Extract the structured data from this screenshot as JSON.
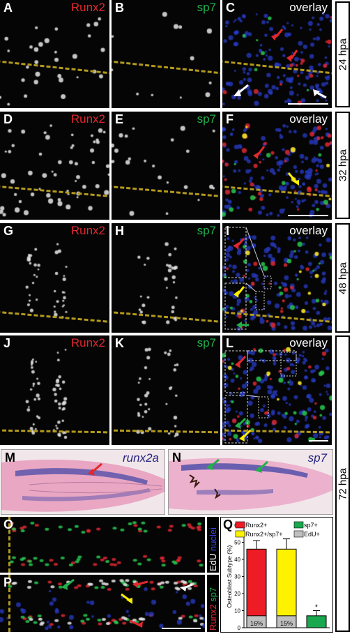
{
  "panels": {
    "A": {
      "letter": "A",
      "channel": "Runx2"
    },
    "B": {
      "letter": "B",
      "channel": "sp7"
    },
    "C": {
      "letter": "C",
      "channel": "overlay"
    },
    "D": {
      "letter": "D",
      "channel": "Runx2"
    },
    "E": {
      "letter": "E",
      "channel": "sp7"
    },
    "F": {
      "letter": "F",
      "channel": "overlay"
    },
    "G": {
      "letter": "G",
      "channel": "Runx2"
    },
    "H": {
      "letter": "H",
      "channel": "sp7"
    },
    "I": {
      "letter": "I",
      "channel": "overlay"
    },
    "J": {
      "letter": "J",
      "channel": "Runx2"
    },
    "K": {
      "letter": "K",
      "channel": "sp7"
    },
    "L": {
      "letter": "L",
      "channel": "overlay"
    },
    "M": {
      "letter": "M",
      "gene": "runx2a"
    },
    "N": {
      "letter": "N",
      "gene": "sp7"
    },
    "O": {
      "letter": "O"
    },
    "P": {
      "letter": "P"
    },
    "Q": {
      "letter": "Q"
    }
  },
  "timepoints": [
    "24 hpa",
    "32 hpa",
    "48 hpa",
    "72 hpa"
  ],
  "vertical_legends": {
    "edu_nuclei": [
      {
        "text": "EdU",
        "color": "#ffffff"
      },
      {
        "text": " nuclei",
        "color": "#3a48e8"
      }
    ],
    "runx2_sp7": [
      {
        "text": "Runx2",
        "color": "#e0282e"
      },
      {
        "text": " sp7",
        "color": "#22b04a"
      }
    ]
  },
  "colors": {
    "runx2": "#e0282e",
    "sp7": "#22b04a",
    "overlay": "#ffffff",
    "dash": "#b39a1d",
    "double": "#ffee00",
    "edu": "#c0c0c0",
    "ish_stain": "#4a4aa8"
  },
  "chart_data": {
    "type": "bar",
    "categories": [
      "Runx2+",
      "Runx2+/sp7+",
      "sp7+"
    ],
    "ylabel": "Osteoblast Subtype (%)",
    "ylim": [
      0,
      60
    ],
    "yticks": [
      0,
      10,
      20,
      30,
      40,
      50,
      60
    ],
    "values": [
      46,
      46,
      7
    ],
    "errors": [
      5,
      6,
      3
    ],
    "colors": [
      "#ee1c24",
      "#fff200",
      "#1aa84f"
    ],
    "edu_fraction_labels": [
      "16%",
      "15%",
      ""
    ],
    "edu_values": [
      7,
      7,
      0
    ],
    "significance": "*",
    "legend": [
      {
        "sup": "Runx2",
        "text": "+",
        "color": "#ee1c24"
      },
      {
        "sup": "sp7",
        "text": "+",
        "color": "#1aa84f"
      },
      {
        "sup": "Runx2",
        "text": "+/sp7+",
        "color": "#fff200"
      },
      {
        "sup": "EdU",
        "text": "+",
        "color": "#c0c0c0"
      }
    ]
  }
}
